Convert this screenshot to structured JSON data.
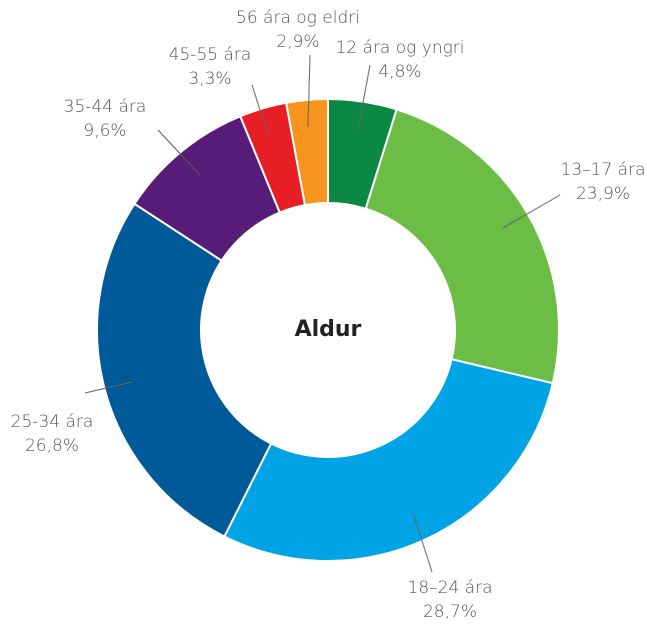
{
  "chart_data": {
    "type": "donut",
    "title": "Aldur",
    "categories": [
      "12 ára og yngri",
      "13–17 ára",
      "18–24 ára",
      "25-34 ára",
      "35-44 ára",
      "45-55 ára",
      "56 ára og eldri"
    ],
    "values": [
      4.8,
      23.9,
      28.7,
      26.8,
      9.6,
      3.3,
      2.9
    ],
    "value_labels": [
      "4,8%",
      "23,9%",
      "28,7%",
      "26,8%",
      "9,6%",
      "3,3%",
      "2,9%"
    ],
    "colors": [
      "#0b8843",
      "#6cbd45",
      "#00a3e6",
      "#005a99",
      "#561c78",
      "#e81e25",
      "#f7941d"
    ]
  }
}
